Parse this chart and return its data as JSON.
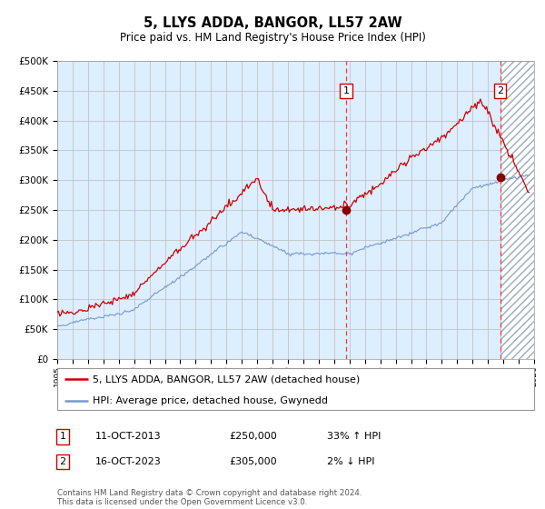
{
  "title": "5, LLYS ADDA, BANGOR, LL57 2AW",
  "subtitle": "Price paid vs. HM Land Registry's House Price Index (HPI)",
  "legend_line1": "5, LLYS ADDA, BANGOR, LL57 2AW (detached house)",
  "legend_line2": "HPI: Average price, detached house, Gwynedd",
  "annotation1_label": "1",
  "annotation1_date": "11-OCT-2013",
  "annotation1_price": "£250,000",
  "annotation1_hpi": "33% ↑ HPI",
  "annotation1_year": 2013.78,
  "annotation1_value": 250000,
  "annotation2_label": "2",
  "annotation2_date": "16-OCT-2023",
  "annotation2_price": "£305,000",
  "annotation2_hpi": "2% ↓ HPI",
  "annotation2_year": 2023.79,
  "annotation2_value": 305000,
  "red_line_color": "#cc0000",
  "blue_line_color": "#7799cc",
  "background_color": "#ffffff",
  "plot_bg_color": "#ddeeff",
  "grid_color": "#bbbbbb",
  "vline_color": "#ff3333",
  "dot_color": "#880000",
  "xmin": 1995,
  "xmax": 2026,
  "ymin": 0,
  "ymax": 500000,
  "yticks": [
    0,
    50000,
    100000,
    150000,
    200000,
    250000,
    300000,
    350000,
    400000,
    450000,
    500000
  ],
  "footer": "Contains HM Land Registry data © Crown copyright and database right 2024.\nThis data is licensed under the Open Government Licence v3.0."
}
